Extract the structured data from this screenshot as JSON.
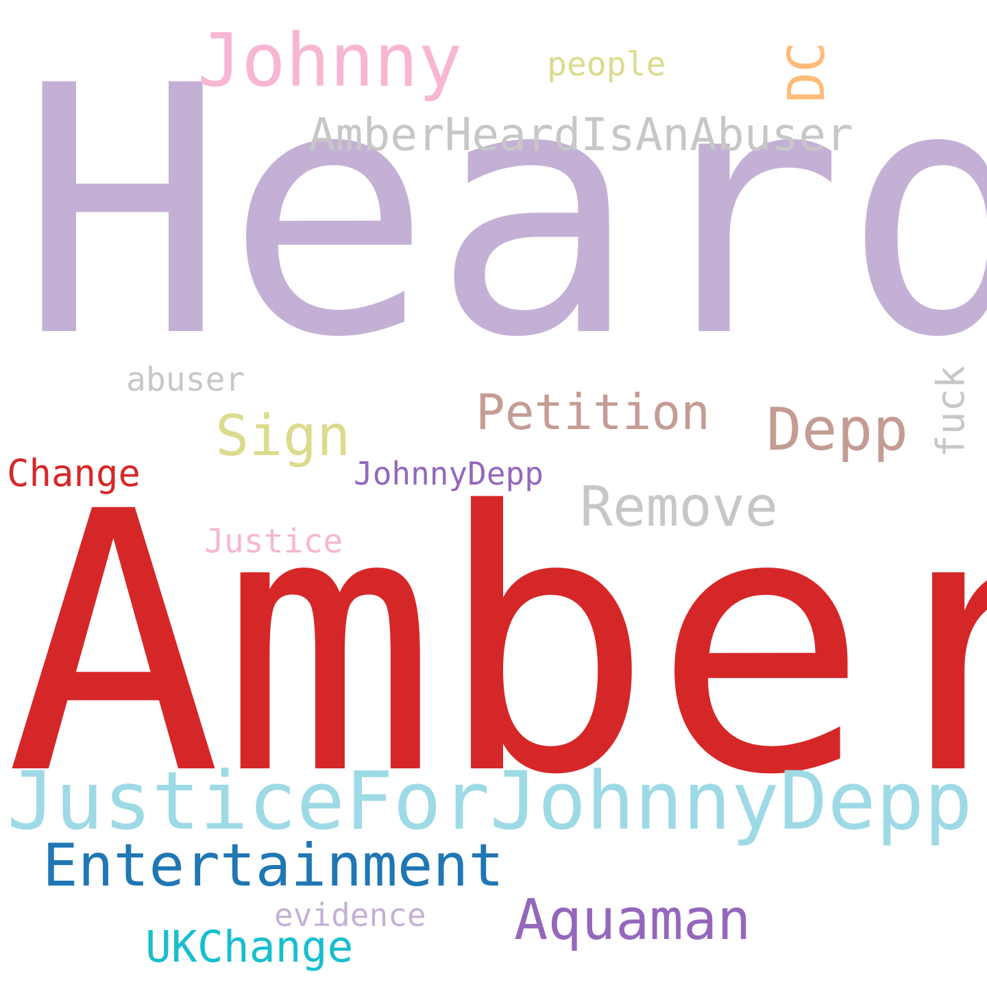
{
  "words": [
    {
      "text": "Heard",
      "color": "#c5b0d5"
    },
    {
      "text": "Amber",
      "color": "#d62728"
    },
    {
      "text": "JusticeForJohnnyDepp",
      "color": "#9edae5"
    },
    {
      "text": "Johnny",
      "color": "#f7b6d2"
    },
    {
      "text": "Entertainment",
      "color": "#1f77b4"
    },
    {
      "text": "Aquaman",
      "color": "#9467bd"
    },
    {
      "text": "Depp",
      "color": "#c49c94"
    },
    {
      "text": "Petition",
      "color": "#c49c94"
    },
    {
      "text": "Remove",
      "color": "#c7c7c7"
    },
    {
      "text": "Sign",
      "color": "#dbdb8d"
    },
    {
      "text": "AmberHeardIsAnAbuser",
      "color": "#c7c7c7"
    },
    {
      "text": "DC",
      "color": "#ffbb78"
    },
    {
      "text": "UKChange",
      "color": "#17becf"
    },
    {
      "text": "fuck",
      "color": "#c7c7c7"
    },
    {
      "text": "Change",
      "color": "#d62728"
    },
    {
      "text": "JohnnyDepp",
      "color": "#9467bd"
    },
    {
      "text": "people",
      "color": "#dbdb8d"
    },
    {
      "text": "abuser",
      "color": "#c7c7c7"
    },
    {
      "text": "Justice",
      "color": "#f7b6d2"
    },
    {
      "text": "evidence",
      "color": "#c5b0d5"
    }
  ]
}
